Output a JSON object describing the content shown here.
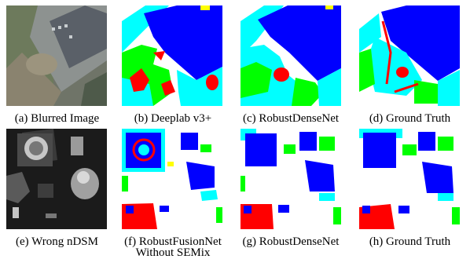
{
  "figure": {
    "row1": [
      {
        "label": "(a) Blurred Image"
      },
      {
        "label": "(b) Deeplab v3+"
      },
      {
        "label": "(c) RobustDenseNet"
      },
      {
        "label": "(d) Ground Truth"
      }
    ],
    "row2": [
      {
        "label": "(e) Wrong nDSM"
      },
      {
        "label": "(f) RobustFusionNet",
        "label2": "Without SEMix"
      },
      {
        "label": "(g) RobustDenseNet"
      },
      {
        "label": "(h) Ground Truth"
      }
    ]
  },
  "class_colors": {
    "impervious": "#ffffff",
    "building": "#0000ff",
    "low_vegetation": "#00ffff",
    "tree": "#00ff00",
    "car": "#ffff00",
    "clutter": "#ff0000"
  }
}
